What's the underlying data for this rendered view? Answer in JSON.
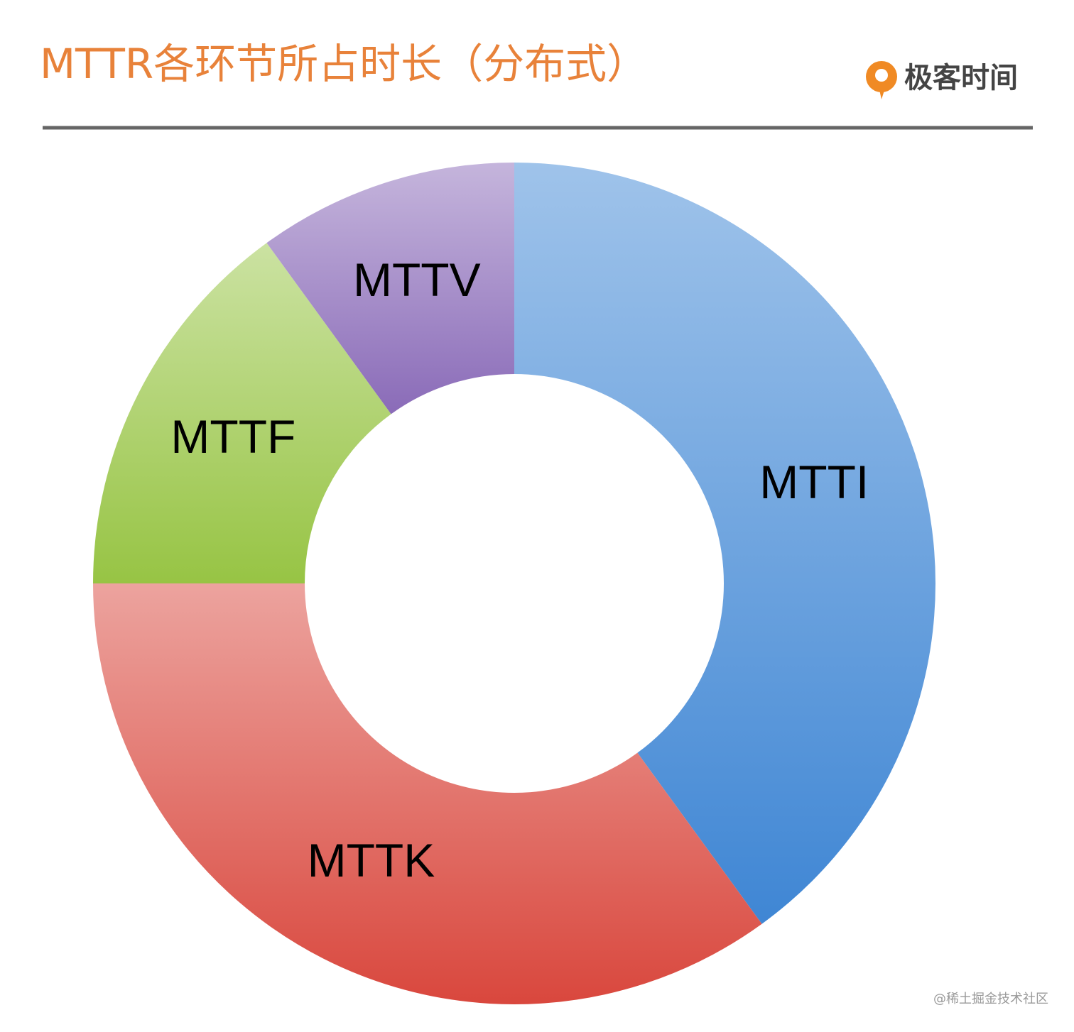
{
  "header": {
    "logo": "极客时间",
    "watermark": "@稀土掘金技术社区"
  },
  "chart_data": {
    "type": "pie",
    "title": "MTTR各环节所占时长（分布式）",
    "categories": [
      "MTTI",
      "MTTK",
      "MTTF",
      "MTTV"
    ],
    "values": [
      40,
      35,
      15,
      10
    ],
    "colors": [
      "#3f86d4",
      "#d9473d",
      "#97c444",
      "#8a6bb8"
    ]
  }
}
